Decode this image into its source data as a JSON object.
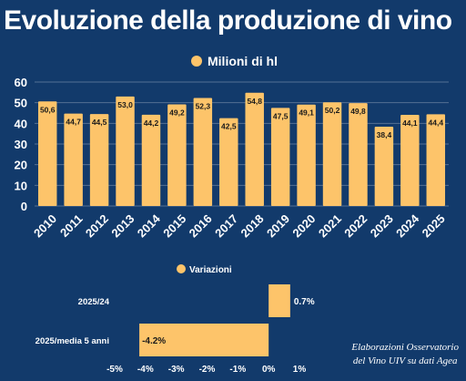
{
  "title": "Evoluzione della produzione di vino",
  "source_line1": "Elaborazioni Osservatorio",
  "source_line2": "del Vino UIV su dati Agea",
  "colors": {
    "background": "#123a6b",
    "bar": "#fdc46a",
    "text": "#ffffff",
    "label_text": "#1a1a1a"
  },
  "chart_data": [
    {
      "type": "bar",
      "legend": "Milioni di hl",
      "categories": [
        "2010",
        "2011",
        "2012",
        "2013",
        "2014",
        "2015",
        "2016",
        "2017",
        "2018",
        "2019",
        "2020",
        "2021",
        "2022",
        "2023",
        "2024",
        "2025"
      ],
      "values": [
        50.6,
        44.7,
        44.5,
        53.0,
        44.2,
        49.2,
        52.3,
        42.5,
        54.8,
        47.5,
        49.1,
        50.2,
        49.8,
        38.4,
        44.1,
        44.4
      ],
      "value_labels": [
        "50,6",
        "44,7",
        "44,5",
        "53,0",
        "44,2",
        "49,2",
        "52,3",
        "42,5",
        "54,8",
        "47,5",
        "49,1",
        "50,2",
        "49,8",
        "38,4",
        "44,1",
        "44,4"
      ],
      "yticks": [
        "0",
        "10",
        "20",
        "30",
        "40",
        "50",
        "60"
      ],
      "ylim": [
        0,
        60
      ],
      "grid": true
    },
    {
      "type": "bar",
      "orientation": "horizontal",
      "legend": "Variazioni",
      "categories": [
        "2025/24",
        "2025/media 5 anni"
      ],
      "values": [
        0.7,
        -4.2
      ],
      "value_labels": [
        "0.7%",
        "-4.2%"
      ],
      "xticks": [
        "-5%",
        "-4%",
        "-3%",
        "-2%",
        "-1%",
        "0%",
        "1%"
      ],
      "xlim": [
        -5,
        1
      ],
      "grid": false
    }
  ]
}
